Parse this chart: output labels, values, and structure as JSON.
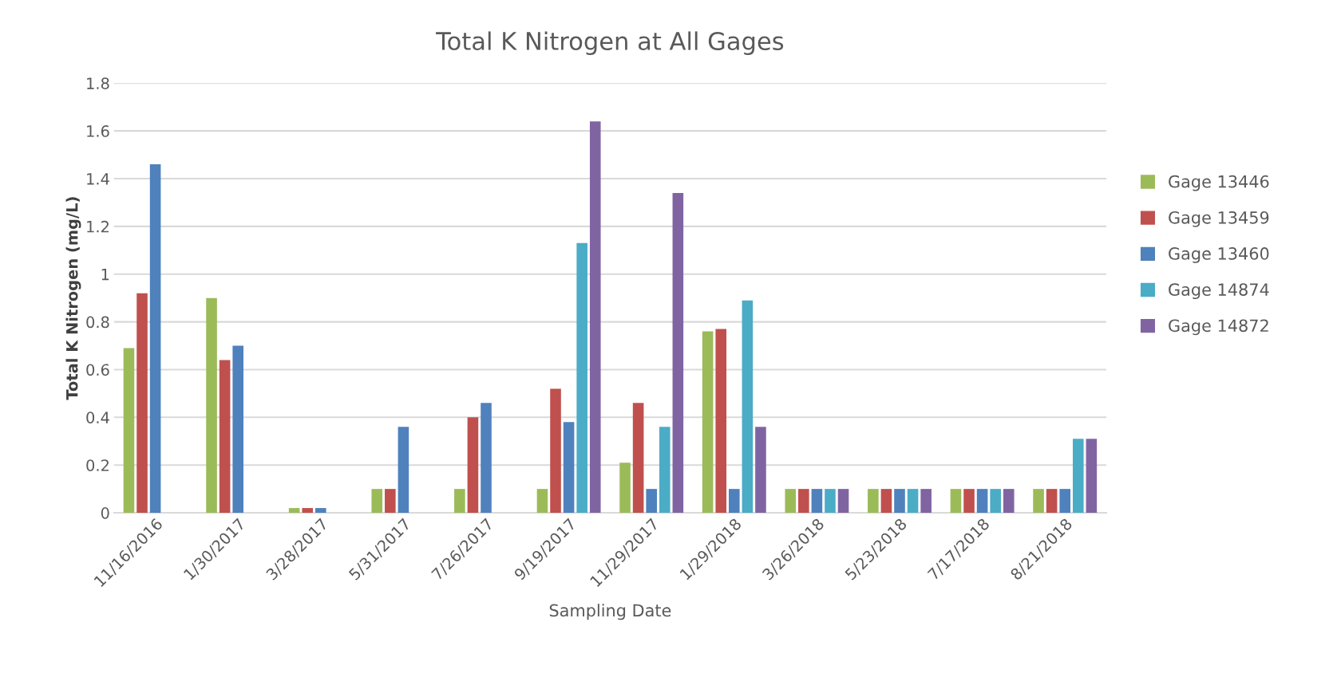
{
  "chart_data": {
    "type": "bar",
    "title": "Total K Nitrogen at All Gages",
    "xlabel": "Sampling Date",
    "ylabel": "Total K Nitrogen (mg/L)",
    "categories": [
      "11/16/2016",
      "1/30/2017",
      "3/28/2017",
      "5/31/2017",
      "7/26/2017",
      "9/19/2017",
      "11/29/2017",
      "1/29/2018",
      "3/26/2018",
      "5/23/2018",
      "7/17/2018",
      "8/21/2018"
    ],
    "series": [
      {
        "name": "Gage 13446",
        "color": "#9bbb59",
        "values": [
          0.69,
          0.9,
          0.02,
          0.1,
          0.1,
          0.1,
          0.21,
          0.76,
          0.1,
          0.1,
          0.1,
          0.1
        ]
      },
      {
        "name": "Gage 13459",
        "color": "#c0504d",
        "values": [
          0.92,
          0.64,
          0.02,
          0.1,
          0.4,
          0.52,
          0.46,
          0.77,
          0.1,
          0.1,
          0.1,
          0.1
        ]
      },
      {
        "name": "Gage 13460",
        "color": "#4f81bd",
        "values": [
          1.46,
          0.7,
          0.02,
          0.36,
          0.46,
          0.38,
          0.1,
          0.1,
          0.1,
          0.1,
          0.1,
          0.1
        ]
      },
      {
        "name": "Gage 14874",
        "color": "#4bacc6",
        "values": [
          null,
          null,
          null,
          null,
          null,
          1.13,
          0.36,
          0.89,
          0.1,
          0.1,
          0.1,
          0.31
        ]
      },
      {
        "name": "Gage 14872",
        "color": "#8064a2",
        "values": [
          null,
          null,
          null,
          null,
          null,
          1.64,
          1.34,
          0.36,
          0.1,
          0.1,
          0.1,
          0.31
        ]
      }
    ],
    "ylim": [
      0,
      1.8
    ],
    "yticks": [
      0,
      0.2,
      0.4,
      0.6,
      0.8,
      1,
      1.2,
      1.4,
      1.6,
      1.8
    ],
    "grid": "y",
    "legend": "right"
  }
}
